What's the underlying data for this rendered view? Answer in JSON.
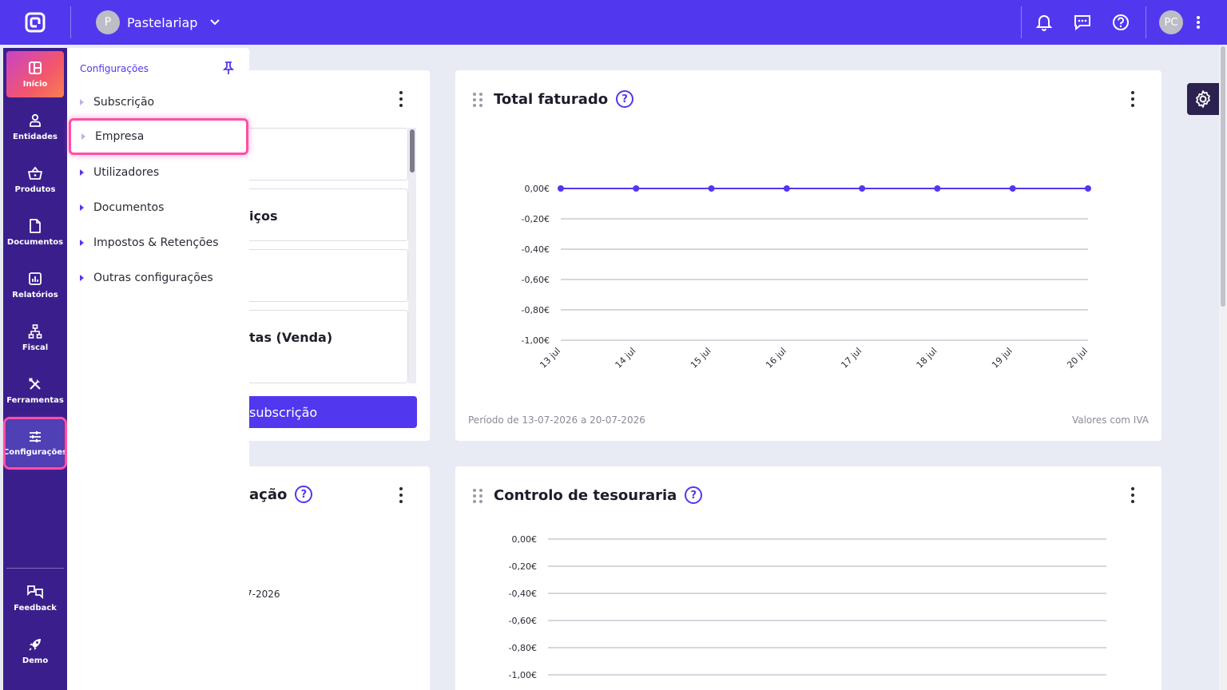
{
  "topbar": {
    "company_initial": "P",
    "company_name": "Pastelariap",
    "user_initials": "PC"
  },
  "leftnav": {
    "items": [
      {
        "label": "Início",
        "icon": "dashboard-icon"
      },
      {
        "label": "Entidades",
        "icon": "person-icon"
      },
      {
        "label": "Produtos",
        "icon": "basket-icon"
      },
      {
        "label": "Documentos",
        "icon": "document-icon"
      },
      {
        "label": "Relatórios",
        "icon": "report-chart-icon"
      },
      {
        "label": "Fiscal",
        "icon": "fiscal-hierarchy-icon"
      },
      {
        "label": "Ferramentas",
        "icon": "tools-icon"
      },
      {
        "label": "Configurações",
        "icon": "sliders-icon"
      }
    ],
    "bottom": [
      {
        "label": "Feedback",
        "icon": "feedback-icon"
      },
      {
        "label": "Demo",
        "icon": "rocket-icon"
      }
    ]
  },
  "flyout": {
    "title": "Configurações",
    "items": [
      {
        "label": "Subscrição"
      },
      {
        "label": "Empresa"
      },
      {
        "label": "Utilizadores"
      },
      {
        "label": "Documentos"
      },
      {
        "label": "Impostos & Retenções"
      },
      {
        "label": "Outras configurações"
      }
    ]
  },
  "subscription_card": {
    "partial_item_2": "iços",
    "partial_item_4": "tas (Venda)",
    "button_label": "subscrição"
  },
  "bottom_left_card": {
    "partial_title": "ação",
    "partial_text": "7-2026"
  },
  "total_faturado": {
    "title": "Total faturado",
    "period": "Período de 13-07-2026 a 20-07-2026",
    "note": "Valores com IVA"
  },
  "controlo_tesouraria": {
    "title": "Controlo de tesouraria"
  },
  "chart_data": [
    {
      "type": "line",
      "title": "Total faturado",
      "x": [
        "13 jul",
        "14 jul",
        "15 jul",
        "16 jul",
        "17 jul",
        "18 jul",
        "19 jul",
        "20 jul"
      ],
      "series": [
        {
          "values": [
            0,
            0,
            0,
            0,
            0,
            0,
            0,
            0
          ]
        }
      ],
      "yticks": [
        "0,00€",
        "-0,20€",
        "-0,40€",
        "-0,60€",
        "-0,80€",
        "-1,00€"
      ],
      "ylim": [
        -1.0,
        0.0
      ],
      "grid": true,
      "color": "#5138ee"
    },
    {
      "type": "line",
      "title": "Controlo de tesouraria",
      "yticks": [
        "0,00€",
        "-0,20€",
        "-0,40€",
        "-0,60€",
        "-0,80€",
        "-1,00€"
      ],
      "ylim": [
        -1.0,
        0.0
      ],
      "grid": true
    }
  ]
}
